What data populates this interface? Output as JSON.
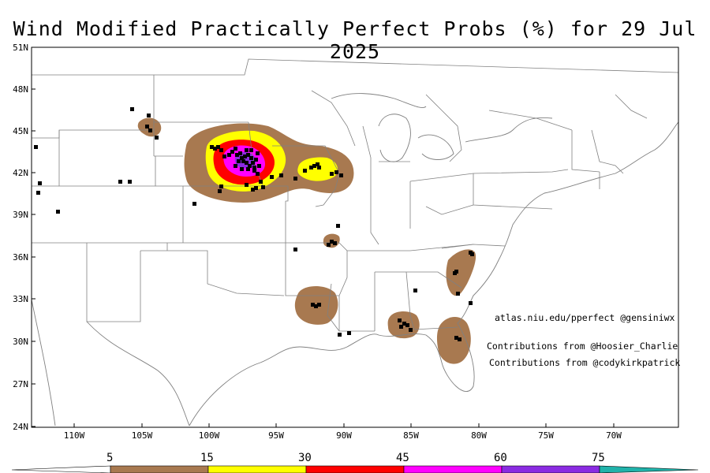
{
  "title": "Wind Modified Practically Perfect Probs (%) for 29 Jul 2025",
  "credits": {
    "site": "atlas.niu.edu/pperfect @gensiniwx",
    "contrib1": "Contributions from @Hoosier_Charlie",
    "contrib2": "Contributions from @codykirkpatrick"
  },
  "axes": {
    "lat_labels": [
      "51N",
      "48N",
      "45N",
      "42N",
      "39N",
      "36N",
      "33N",
      "30N",
      "27N",
      "24N"
    ],
    "lon_labels": [
      "110W",
      "105W",
      "100W",
      "95W",
      "90W",
      "85W",
      "80W",
      "75W",
      "70W"
    ]
  },
  "legend": {
    "labels": [
      "5",
      "15",
      "30",
      "45",
      "60",
      "75"
    ],
    "colors": [
      "#a87950",
      "#ffff00",
      "#ff0000",
      "#ff00ff",
      "#8a2be2",
      "#20b2aa"
    ]
  },
  "colors": {
    "prob_5": "#a87950",
    "prob_15": "#ffff00",
    "prob_30": "#ff0000",
    "prob_45": "#ff00ff",
    "prob_60": "#8a2be2",
    "report": "#000000",
    "boundary": "#808080"
  }
}
